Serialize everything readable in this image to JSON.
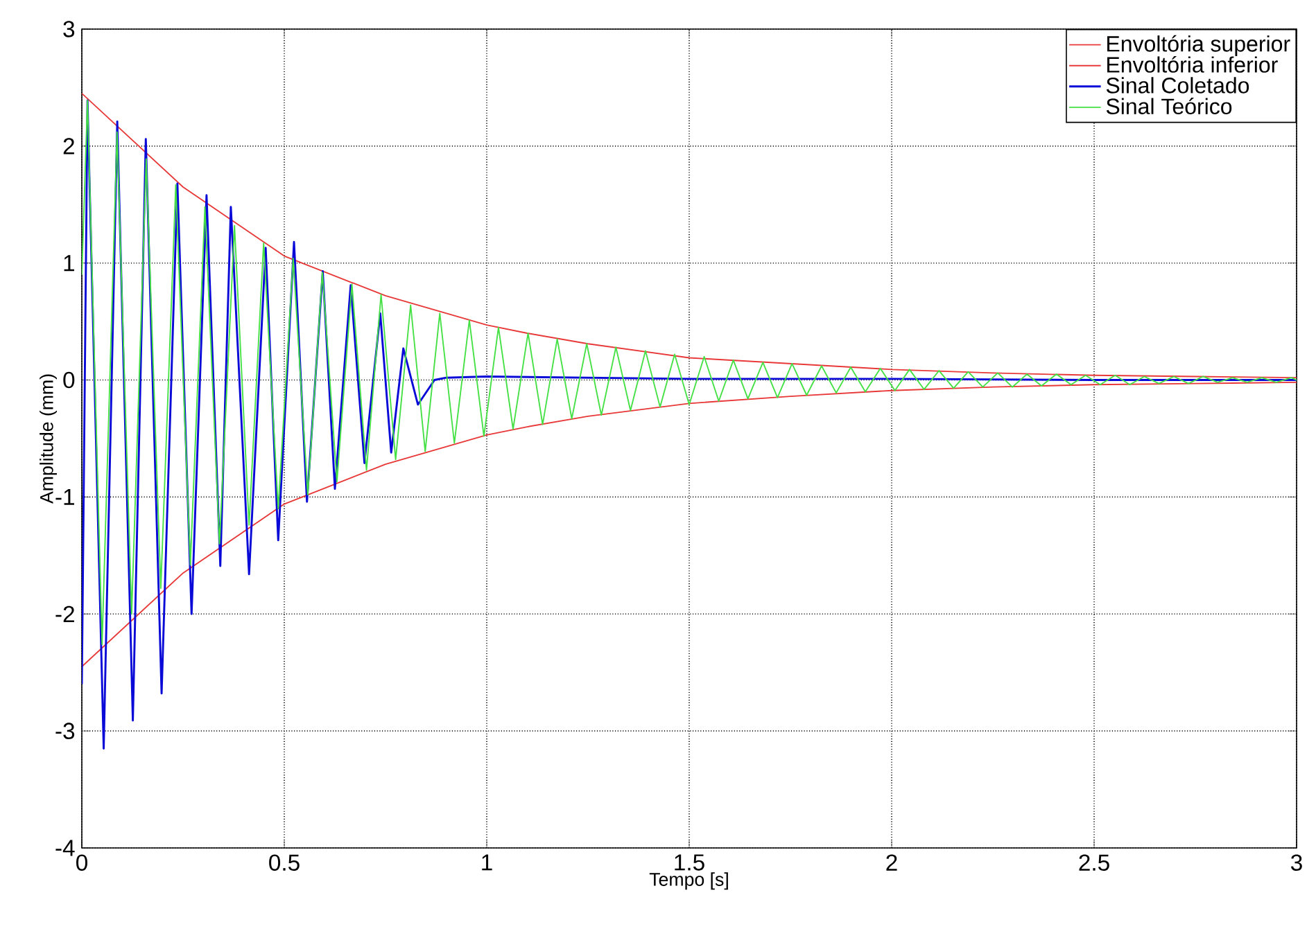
{
  "chart_data": {
    "type": "line",
    "xlabel": "Tempo [s]",
    "ylabel": "Amplitude (mm)",
    "xlim": [
      0,
      3
    ],
    "ylim": [
      -4,
      3
    ],
    "xticks": [
      0,
      0.5,
      1,
      1.5,
      2,
      2.5,
      3
    ],
    "yticks": [
      -4,
      -3,
      -2,
      -1,
      0,
      1,
      2,
      3
    ],
    "grid": true,
    "legend": "top right",
    "series": [
      {
        "name": "Envoltória superior",
        "color": "#e83838",
        "x": [
          0,
          0.25,
          0.5,
          0.75,
          1,
          1.1,
          1.25,
          1.5,
          1.75,
          2,
          2.25,
          2.5,
          2.75,
          3
        ],
        "values": [
          2.45,
          1.65,
          1.06,
          0.72,
          0.47,
          0.4,
          0.31,
          0.19,
          0.14,
          0.09,
          0.06,
          0.04,
          0.03,
          0.02
        ]
      },
      {
        "name": "Envoltória inferior",
        "color": "#e83838",
        "x": [
          0,
          0.25,
          0.5,
          0.75,
          1,
          1.1,
          1.25,
          1.5,
          1.75,
          2,
          2.25,
          2.5,
          2.75,
          3
        ],
        "values": [
          -2.45,
          -1.65,
          -1.06,
          -0.72,
          -0.47,
          -0.4,
          -0.31,
          -0.2,
          -0.14,
          -0.09,
          -0.06,
          -0.04,
          -0.03,
          -0.02
        ]
      },
      {
        "name": "Sinal Coletado",
        "color": "#0a0ad8",
        "x": [
          0,
          0.014,
          0.054,
          0.0875,
          0.126,
          0.158,
          0.197,
          0.236,
          0.271,
          0.308,
          0.342,
          0.368,
          0.413,
          0.454,
          0.485,
          0.524,
          0.556,
          0.595,
          0.625,
          0.664,
          0.698,
          0.737,
          0.764,
          0.794,
          0.83,
          0.871,
          0.9,
          1.0,
          1.5,
          2.0,
          2.5,
          3.0
        ],
        "values": [
          -2.6,
          2.39,
          -3.15,
          2.21,
          -2.91,
          2.06,
          -2.68,
          1.68,
          -2.0,
          1.58,
          -1.59,
          1.48,
          -1.66,
          1.13,
          -1.37,
          1.18,
          -1.04,
          0.93,
          -0.93,
          0.81,
          -0.71,
          0.57,
          -0.62,
          0.27,
          -0.21,
          0.0,
          0.02,
          0.03,
          0.01,
          0.01,
          0.0,
          0.0
        ]
      },
      {
        "name": "Sinal Teórico",
        "color": "#44e044",
        "x": [
          0,
          0.014,
          0.05,
          0.087,
          0.123,
          0.159,
          0.195,
          0.232,
          0.268,
          0.304,
          0.34,
          0.377,
          0.413,
          0.449,
          0.485,
          0.522,
          0.558,
          0.594,
          0.63,
          0.667,
          0.703,
          0.739,
          0.775,
          0.812,
          0.848,
          0.884,
          0.92,
          0.957,
          0.993,
          1.029,
          1.065,
          1.102,
          1.138,
          1.174,
          1.21,
          1.247,
          1.283,
          1.319,
          1.355,
          1.392,
          1.428,
          1.464,
          1.5,
          1.537,
          1.573,
          1.609,
          1.645,
          1.682,
          1.718,
          1.754,
          1.79,
          1.827,
          1.863,
          1.899,
          1.935,
          1.972,
          2.008,
          2.044,
          2.08,
          2.117,
          2.153,
          2.189,
          2.225,
          2.262,
          2.298,
          2.334,
          2.37,
          2.407,
          2.443,
          2.479,
          2.515,
          2.552,
          2.588,
          2.624,
          2.66,
          2.697,
          2.733,
          2.769,
          2.805,
          2.842,
          2.878,
          2.914,
          2.95,
          2.987,
          3
        ],
        "values": [
          0.9,
          2.39,
          -2.26,
          2.12,
          -2.0,
          1.89,
          -1.78,
          1.67,
          -1.58,
          1.48,
          -1.4,
          1.32,
          -1.24,
          1.17,
          -1.1,
          1.04,
          -0.98,
          0.92,
          -0.87,
          0.82,
          -0.77,
          0.73,
          -0.68,
          0.64,
          -0.61,
          0.57,
          -0.54,
          0.51,
          -0.48,
          0.45,
          -0.42,
          0.4,
          -0.38,
          0.35,
          -0.33,
          0.31,
          -0.3,
          0.28,
          -0.26,
          0.25,
          -0.23,
          0.22,
          -0.21,
          0.2,
          -0.18,
          0.17,
          -0.16,
          0.15,
          -0.15,
          0.14,
          -0.13,
          0.12,
          -0.11,
          0.11,
          -0.1,
          0.1,
          -0.09,
          0.09,
          -0.08,
          0.08,
          -0.07,
          0.07,
          -0.06,
          0.06,
          -0.06,
          0.05,
          -0.05,
          0.05,
          -0.04,
          0.04,
          -0.04,
          0.04,
          -0.04,
          0.03,
          -0.03,
          0.03,
          -0.03,
          0.03,
          -0.02,
          0.02,
          -0.02,
          0.02,
          -0.02,
          0.02,
          0.0
        ]
      }
    ]
  }
}
